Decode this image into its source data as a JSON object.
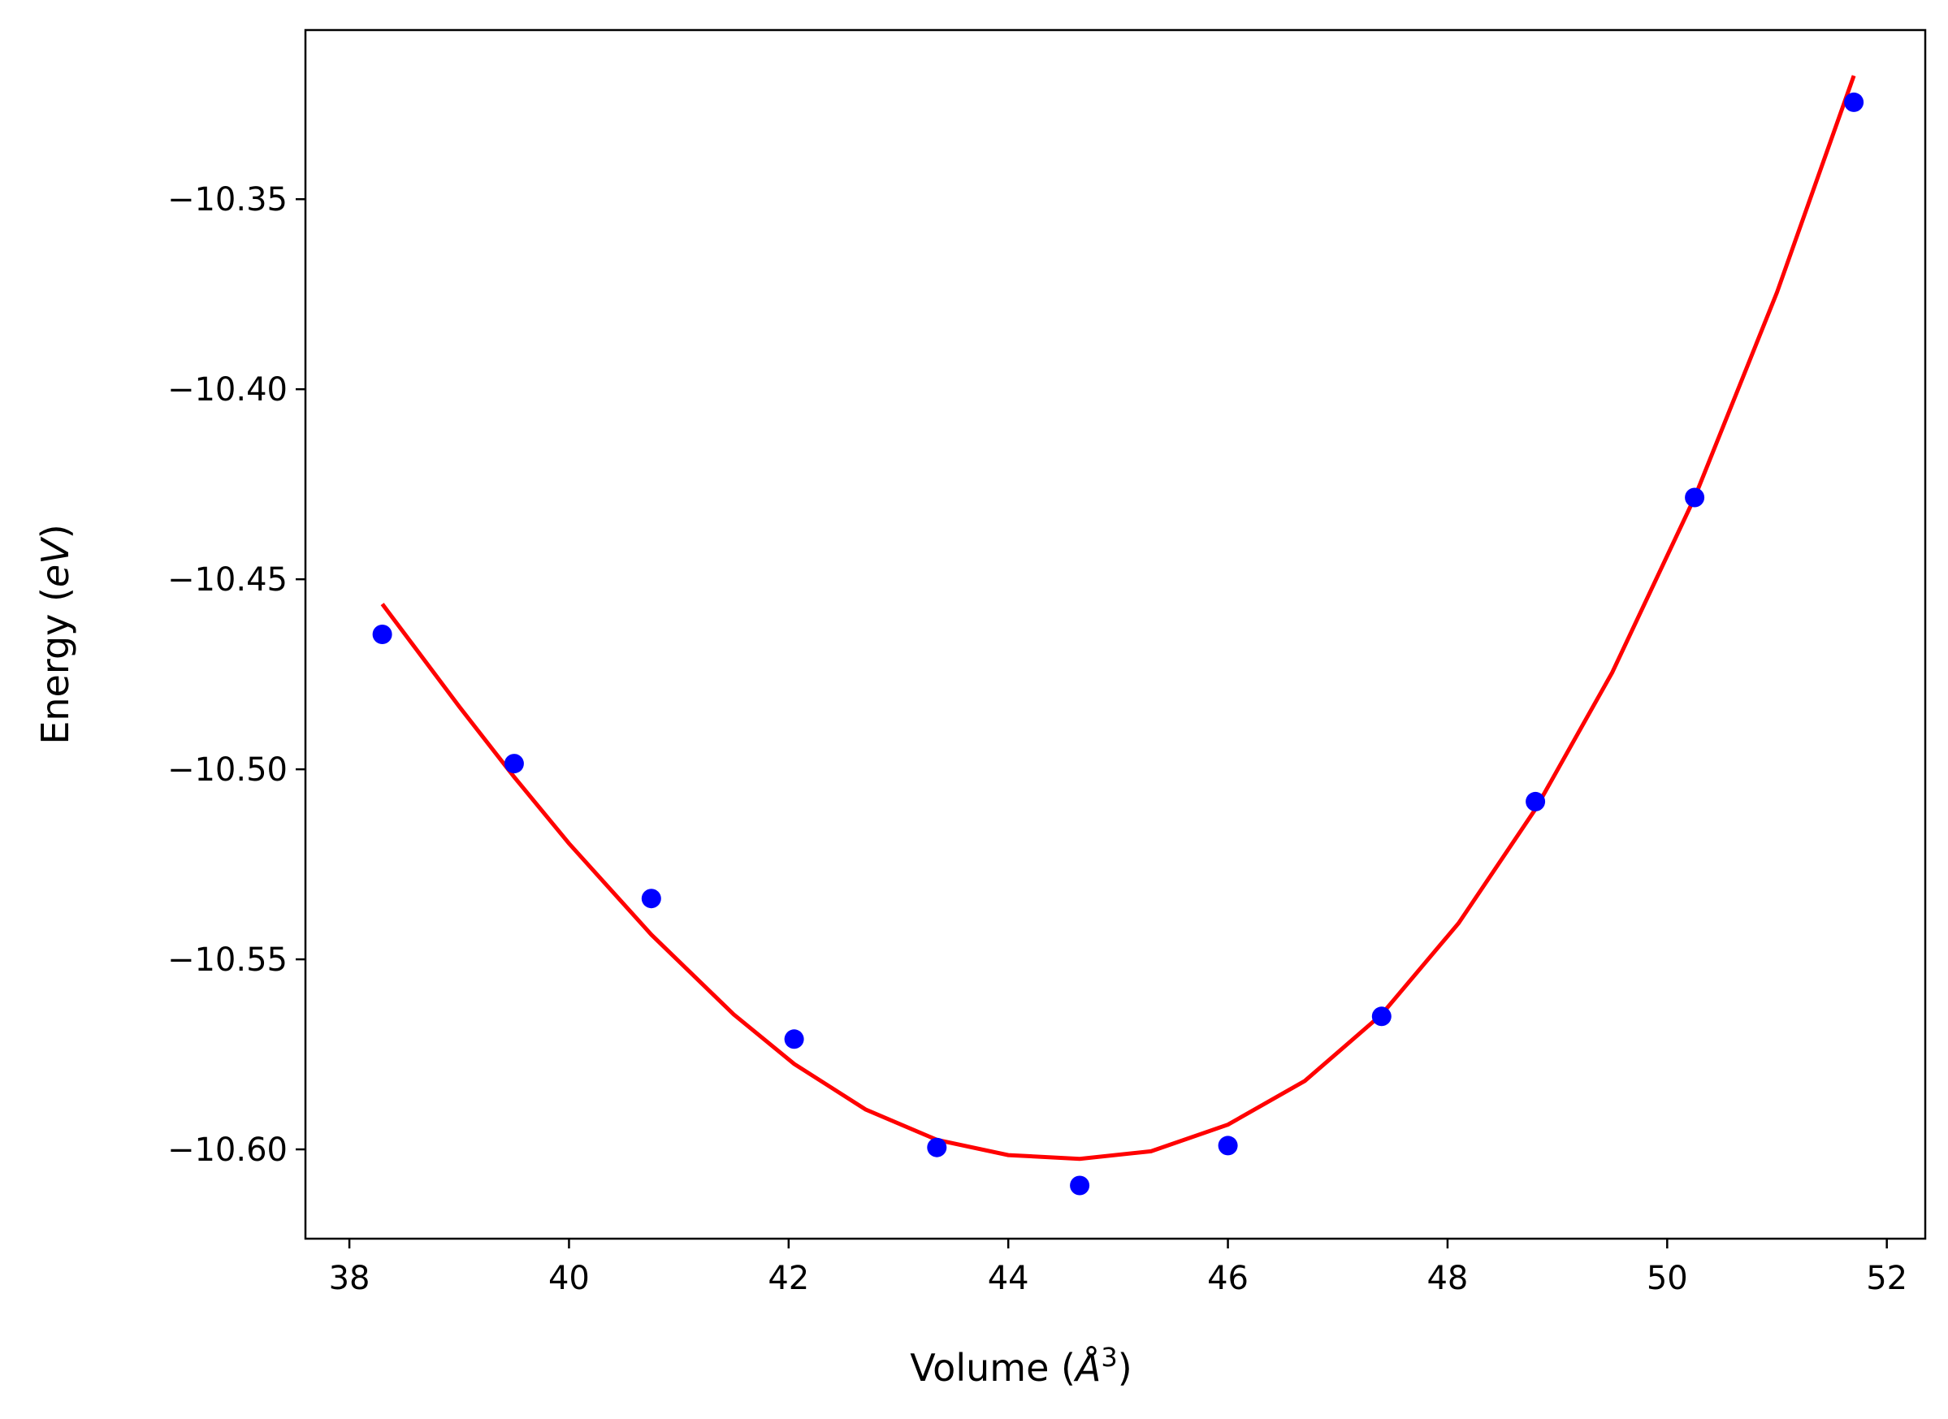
{
  "chart_data": {
    "type": "scatter",
    "title": "",
    "xlabel_prefix": "Volume (",
    "xlabel_symbol": "Å",
    "xlabel_exponent": "3",
    "xlabel_suffix": ")",
    "ylabel_prefix": "Energy (",
    "ylabel_unit": "eV",
    "ylabel_suffix": ")",
    "xlim": [
      37.6,
      52.35
    ],
    "ylim": [
      -10.6235,
      -10.3055
    ],
    "x_ticks": [
      38,
      40,
      42,
      44,
      46,
      48,
      50,
      52
    ],
    "x_tick_labels": [
      "38",
      "40",
      "42",
      "44",
      "46",
      "48",
      "50",
      "52"
    ],
    "y_ticks": [
      -10.35,
      -10.4,
      -10.45,
      -10.5,
      -10.55,
      -10.6
    ],
    "y_tick_labels": [
      "−10.35",
      "−10.40",
      "−10.45",
      "−10.50",
      "−10.55",
      "−10.60"
    ],
    "grid": false,
    "series": [
      {
        "kind": "points",
        "color": "#0000ff",
        "x": [
          38.3,
          39.5,
          40.75,
          42.05,
          43.35,
          44.65,
          46.0,
          47.4,
          48.8,
          50.25,
          51.7
        ],
        "y": [
          -10.4645,
          -10.4985,
          -10.534,
          -10.571,
          -10.5995,
          -10.6095,
          -10.599,
          -10.565,
          -10.5085,
          -10.4285,
          -10.3245
        ]
      },
      {
        "kind": "fit-line",
        "color": "#ff0000",
        "x": [
          38.3,
          39.0,
          39.5,
          40.0,
          40.75,
          41.5,
          42.05,
          42.7,
          43.35,
          44.0,
          44.65,
          45.3,
          46.0,
          46.7,
          47.4,
          48.1,
          48.8,
          49.5,
          50.25,
          51.0,
          51.7
        ],
        "y": [
          -10.4565,
          -10.4835,
          -10.502,
          -10.5195,
          -10.5435,
          -10.5645,
          -10.5775,
          -10.5895,
          -10.5975,
          -10.6015,
          -10.6025,
          -10.6005,
          -10.5935,
          -10.582,
          -10.5645,
          -10.5405,
          -10.5105,
          -10.4745,
          -10.4285,
          -10.3745,
          -10.3175
        ]
      }
    ]
  }
}
